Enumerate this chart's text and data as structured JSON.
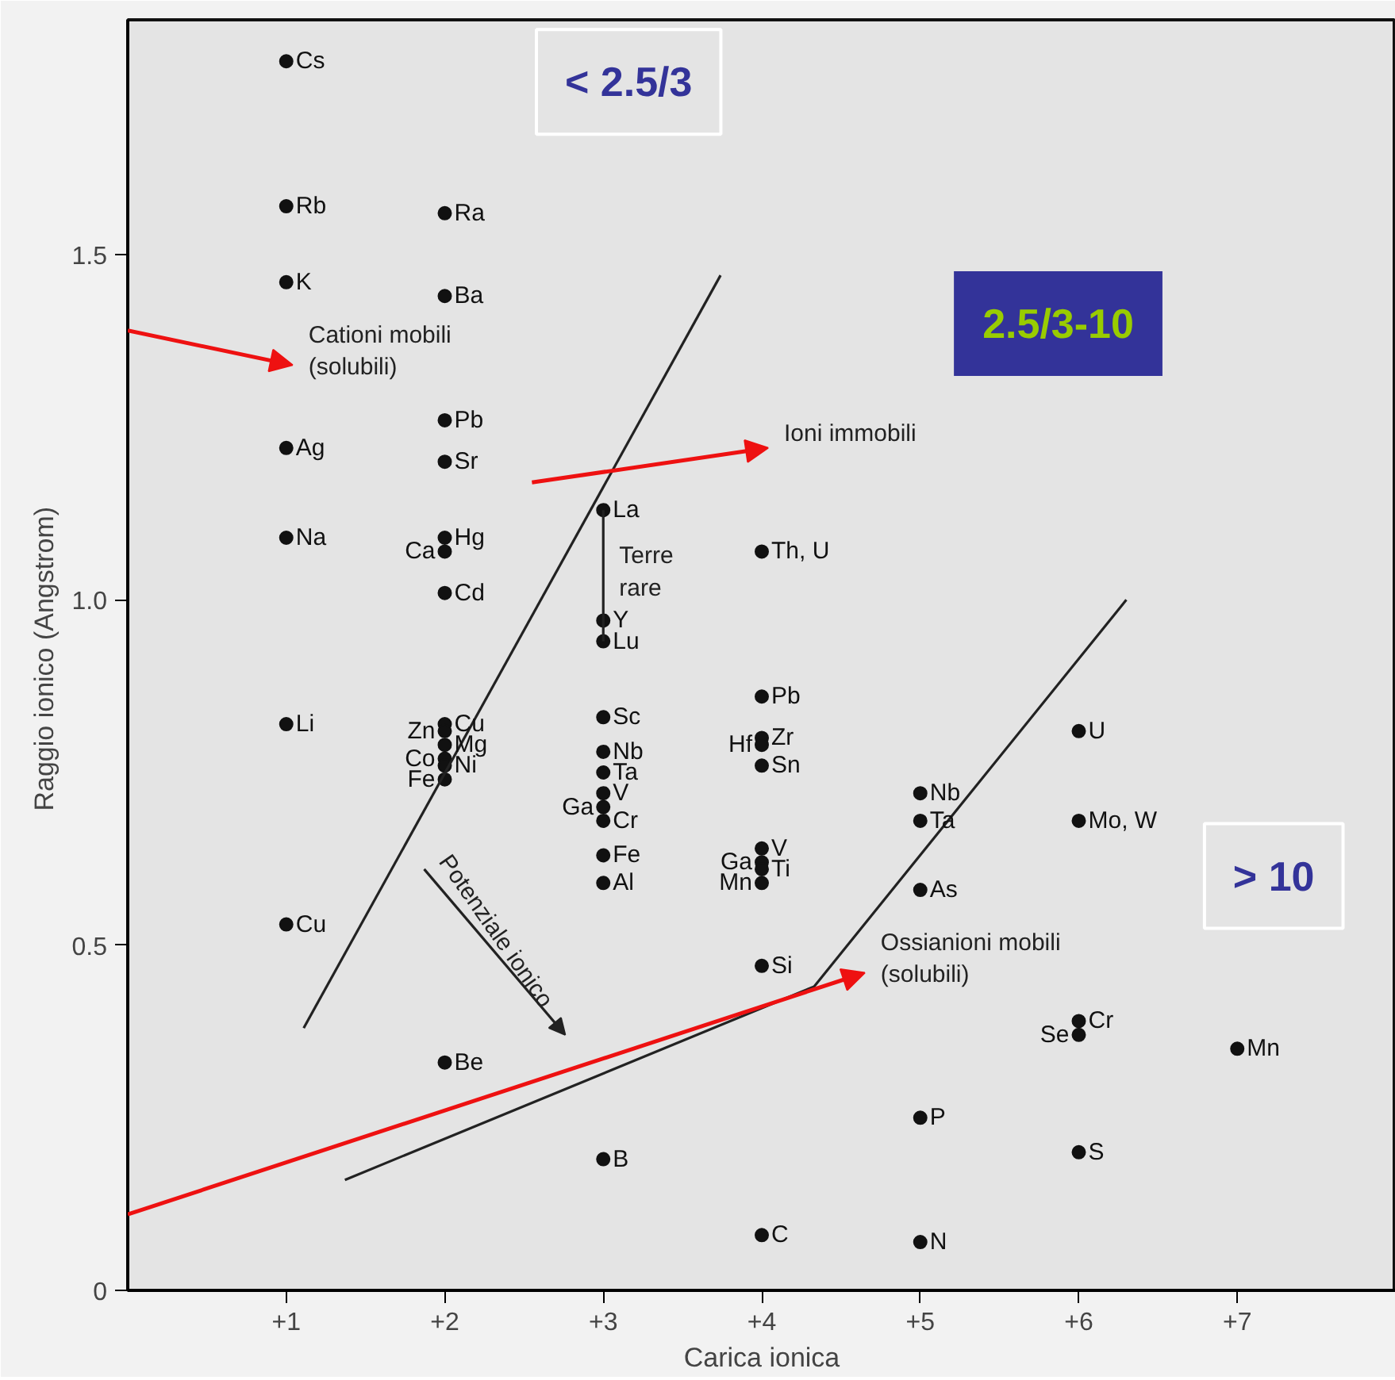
{
  "chart_data": {
    "type": "scatter",
    "xlabel": "Carica ionica",
    "ylabel": "Raggio ionico  (Angstrom)",
    "xlim": [
      0,
      8
    ],
    "ylim": [
      0,
      1.84
    ],
    "xticks": [
      {
        "value": 1,
        "label": "+1"
      },
      {
        "value": 2,
        "label": "+2"
      },
      {
        "value": 3,
        "label": "+3"
      },
      {
        "value": 4,
        "label": "+4"
      },
      {
        "value": 5,
        "label": "+5"
      },
      {
        "value": 6,
        "label": "+6"
      },
      {
        "value": 7,
        "label": "+7"
      }
    ],
    "yticks": [
      0,
      0.5,
      {
        "value": 1,
        "label": "1.0"
      },
      1.5
    ],
    "grid": false,
    "marker": "circle",
    "series": [
      {
        "name": "Cs",
        "x": [
          1
        ],
        "values": [
          1.78
        ],
        "color": "#111111"
      },
      {
        "name": "Rb",
        "x": [
          1
        ],
        "values": [
          1.57
        ],
        "color": "#111111"
      },
      {
        "name": "K",
        "x": [
          1
        ],
        "values": [
          1.46
        ],
        "color": "#111111"
      },
      {
        "name": "Ag",
        "x": [
          1
        ],
        "values": [
          1.22
        ],
        "color": "#111111"
      },
      {
        "name": "Na",
        "x": [
          1
        ],
        "values": [
          1.09
        ],
        "color": "#111111"
      },
      {
        "name": "Li",
        "x": [
          1
        ],
        "values": [
          0.82
        ],
        "color": "#111111"
      },
      {
        "name": "Cu",
        "x": [
          1
        ],
        "values": [
          0.53
        ],
        "color": "#111111"
      },
      {
        "name": "Ra",
        "x": [
          2
        ],
        "values": [
          1.56
        ],
        "color": "#111111"
      },
      {
        "name": "Ba",
        "x": [
          2
        ],
        "values": [
          1.44
        ],
        "color": "#111111"
      },
      {
        "name": "Pb",
        "x": [
          2
        ],
        "values": [
          1.26
        ],
        "color": "#111111"
      },
      {
        "name": "Sr",
        "x": [
          2
        ],
        "values": [
          1.2
        ],
        "color": "#111111"
      },
      {
        "name": "Hg",
        "x": [
          2
        ],
        "values": [
          1.09
        ],
        "color": "#111111"
      },
      {
        "name": "Ca",
        "x": [
          2
        ],
        "values": [
          1.07
        ],
        "color": "#111111"
      },
      {
        "name": "Cd",
        "x": [
          2
        ],
        "values": [
          1.01
        ],
        "color": "#111111"
      },
      {
        "name": "Cu",
        "x": [
          2
        ],
        "values": [
          0.82
        ],
        "color": "#111111"
      },
      {
        "name": "Zn",
        "x": [
          2
        ],
        "values": [
          0.81
        ],
        "color": "#111111"
      },
      {
        "name": "Mg",
        "x": [
          2
        ],
        "values": [
          0.79
        ],
        "color": "#111111"
      },
      {
        "name": "Co",
        "x": [
          2
        ],
        "values": [
          0.77
        ],
        "color": "#111111"
      },
      {
        "name": "Ni",
        "x": [
          2
        ],
        "values": [
          0.76
        ],
        "color": "#111111"
      },
      {
        "name": "Fe",
        "x": [
          2
        ],
        "values": [
          0.74
        ],
        "color": "#111111"
      },
      {
        "name": "Be",
        "x": [
          2
        ],
        "values": [
          0.33
        ],
        "color": "#111111"
      },
      {
        "name": "La",
        "x": [
          3
        ],
        "values": [
          1.13
        ],
        "color": "#111111"
      },
      {
        "name": "Y",
        "x": [
          3
        ],
        "values": [
          0.97
        ],
        "color": "#111111"
      },
      {
        "name": "Lu",
        "x": [
          3
        ],
        "values": [
          0.94
        ],
        "color": "#111111"
      },
      {
        "name": "Sc",
        "x": [
          3
        ],
        "values": [
          0.83
        ],
        "color": "#111111"
      },
      {
        "name": "Nb",
        "x": [
          3
        ],
        "values": [
          0.78
        ],
        "color": "#111111"
      },
      {
        "name": "Ta",
        "x": [
          3
        ],
        "values": [
          0.75
        ],
        "color": "#111111"
      },
      {
        "name": "V",
        "x": [
          3
        ],
        "values": [
          0.72
        ],
        "color": "#111111"
      },
      {
        "name": "Ga",
        "x": [
          3
        ],
        "values": [
          0.7
        ],
        "color": "#111111"
      },
      {
        "name": "Cr",
        "x": [
          3
        ],
        "values": [
          0.68
        ],
        "color": "#111111"
      },
      {
        "name": "Fe",
        "x": [
          3
        ],
        "values": [
          0.63
        ],
        "color": "#111111"
      },
      {
        "name": "Al",
        "x": [
          3
        ],
        "values": [
          0.59
        ],
        "color": "#111111"
      },
      {
        "name": "B",
        "x": [
          3
        ],
        "values": [
          0.19
        ],
        "color": "#111111"
      },
      {
        "name": "Th, U",
        "x": [
          4
        ],
        "values": [
          1.07
        ],
        "color": "#111111"
      },
      {
        "name": "Pb",
        "x": [
          4
        ],
        "values": [
          0.86
        ],
        "color": "#111111"
      },
      {
        "name": "Zr",
        "x": [
          4
        ],
        "values": [
          0.8
        ],
        "color": "#111111"
      },
      {
        "name": "Hf",
        "x": [
          4
        ],
        "values": [
          0.79
        ],
        "color": "#111111"
      },
      {
        "name": "Sn",
        "x": [
          4
        ],
        "values": [
          0.76
        ],
        "color": "#111111"
      },
      {
        "name": "V",
        "x": [
          4
        ],
        "values": [
          0.64
        ],
        "color": "#111111"
      },
      {
        "name": "Ga",
        "x": [
          4
        ],
        "values": [
          0.62
        ],
        "color": "#111111"
      },
      {
        "name": "Ti",
        "x": [
          4
        ],
        "values": [
          0.61
        ],
        "color": "#111111"
      },
      {
        "name": "Mn",
        "x": [
          4
        ],
        "values": [
          0.59
        ],
        "color": "#111111"
      },
      {
        "name": "Si",
        "x": [
          4
        ],
        "values": [
          0.47
        ],
        "color": "#111111"
      },
      {
        "name": "C",
        "x": [
          4
        ],
        "values": [
          0.08
        ],
        "color": "#111111"
      },
      {
        "name": "Nb",
        "x": [
          5
        ],
        "values": [
          0.72
        ],
        "color": "#111111"
      },
      {
        "name": "Ta",
        "x": [
          5
        ],
        "values": [
          0.68
        ],
        "color": "#111111"
      },
      {
        "name": "As",
        "x": [
          5
        ],
        "values": [
          0.58
        ],
        "color": "#111111"
      },
      {
        "name": "P",
        "x": [
          5
        ],
        "values": [
          0.25
        ],
        "color": "#111111"
      },
      {
        "name": "N",
        "x": [
          5
        ],
        "values": [
          0.07
        ],
        "color": "#111111"
      },
      {
        "name": "U",
        "x": [
          6
        ],
        "values": [
          0.81
        ],
        "color": "#111111"
      },
      {
        "name": "Mo, W",
        "x": [
          6
        ],
        "values": [
          0.68
        ],
        "color": "#111111"
      },
      {
        "name": "Cr",
        "x": [
          6
        ],
        "values": [
          0.39
        ],
        "color": "#111111"
      },
      {
        "name": "Se",
        "x": [
          6
        ],
        "values": [
          0.37
        ],
        "color": "#111111"
      },
      {
        "name": "S",
        "x": [
          6
        ],
        "values": [
          0.2
        ],
        "color": "#111111"
      },
      {
        "name": "Mn",
        "x": [
          7
        ],
        "values": [
          0.35
        ],
        "color": "#111111"
      },
      {
        "type": "line",
        "marker": "none",
        "x": [
          1.11,
          3.74
        ],
        "values": [
          0.38,
          1.47
        ],
        "color": "#222222"
      },
      {
        "type": "line",
        "marker": "none",
        "x": [
          1.37,
          4.33,
          6.3
        ],
        "values": [
          0.16,
          0.44,
          1.0
        ],
        "color": "#222222"
      },
      {
        "type": "line",
        "marker": "none",
        "x": [
          3,
          3
        ],
        "values": [
          1.13,
          0.94
        ],
        "color": "#222222"
      }
    ],
    "annotations": [
      "Cationi mobili\n(solubili)",
      "Ioni immobili",
      "Terre\nrare",
      "Ossianioni mobili\n(solubili)",
      "Potenziale ionico",
      "< 2.5/3",
      "2.5/3-10",
      "> 10"
    ]
  }
}
